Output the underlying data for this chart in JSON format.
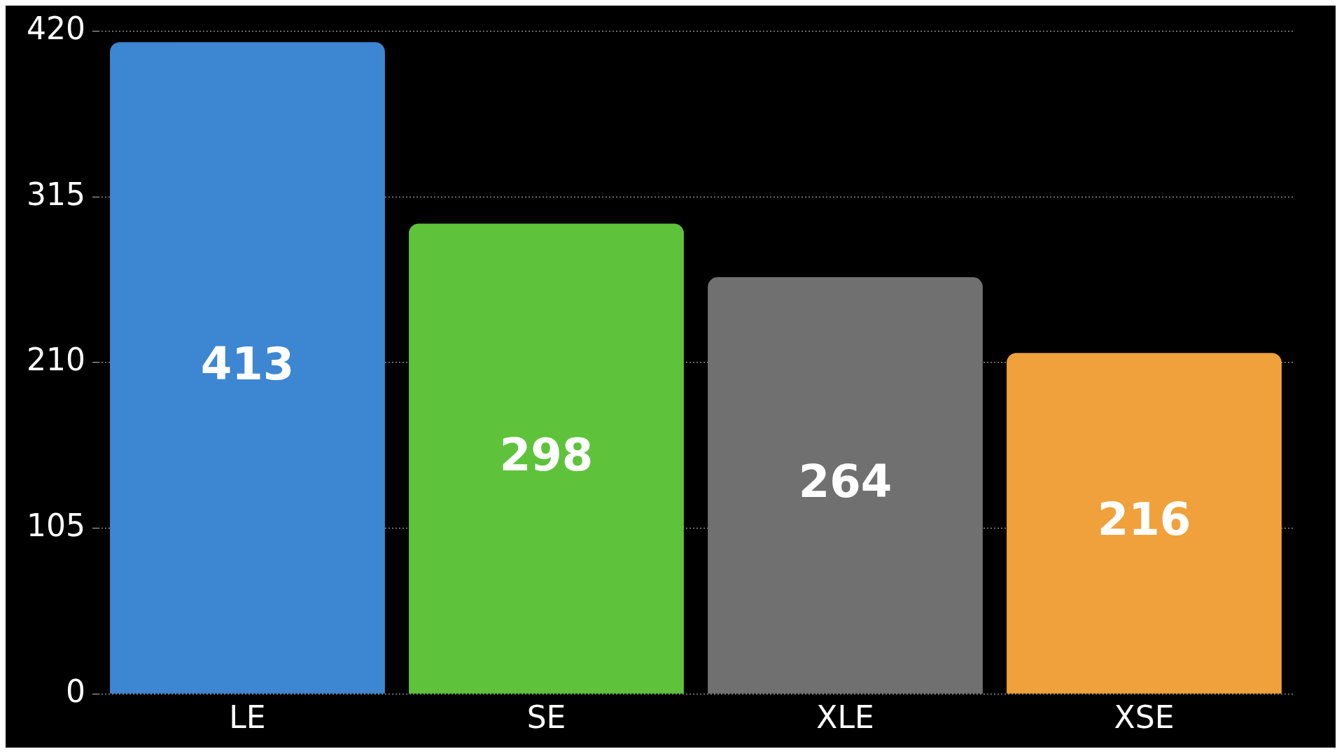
{
  "chart_data": {
    "type": "bar",
    "categories": [
      "LE",
      "SE",
      "XLE",
      "XSE"
    ],
    "values": [
      413,
      298,
      264,
      216
    ],
    "colors": [
      "#3d86d2",
      "#5ec33b",
      "#707070",
      "#f0a13b"
    ],
    "ylim": [
      0,
      420
    ],
    "yticks": [
      0,
      105,
      210,
      315,
      420
    ],
    "grid": "y",
    "data_labels": true
  }
}
